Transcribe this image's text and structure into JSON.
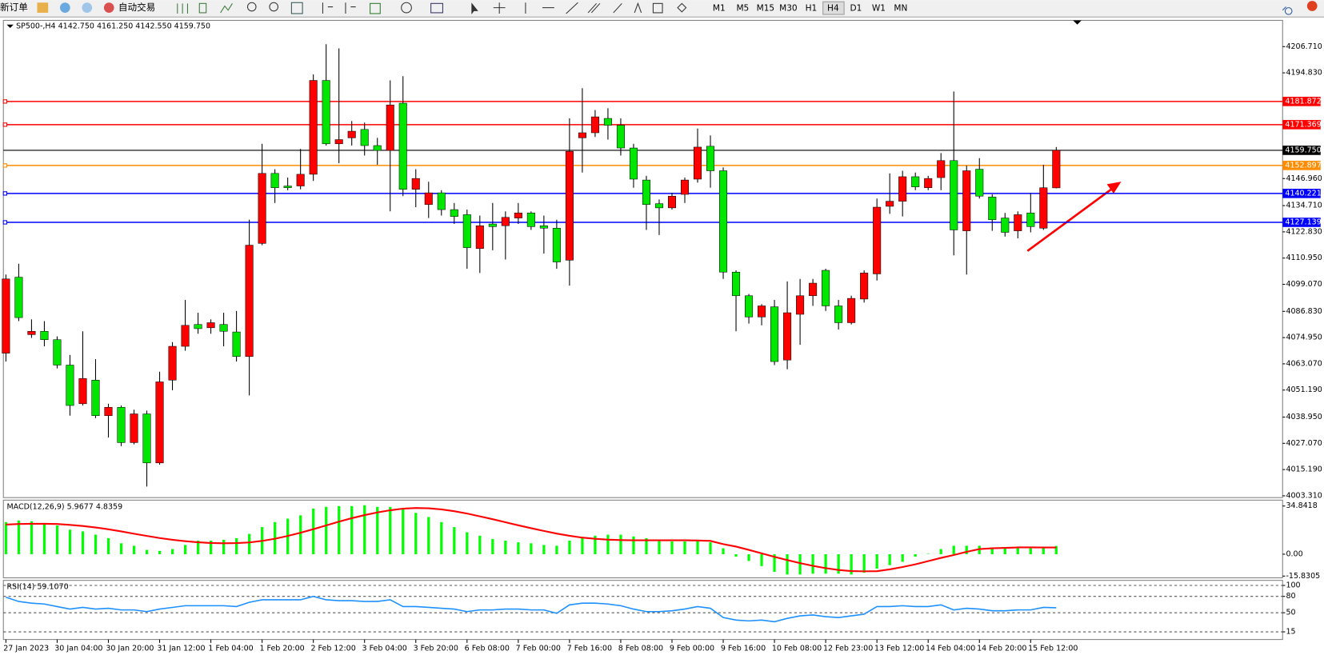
{
  "toolbar": {
    "new_order": "新订单",
    "auto_trading": "自动交易",
    "timeframes": [
      "M1",
      "M5",
      "M15",
      "M30",
      "H1",
      "H4",
      "D1",
      "W1",
      "MN"
    ]
  },
  "chart_data": [
    {
      "type": "candlestick",
      "title": "SP500-,H4  4142.750 4161.250 4142.550 4159.750",
      "up_color": "#ff0000",
      "down_color": "#00e600",
      "wick_color": "#000000",
      "categories": [
        "27 Jan 2023",
        null,
        null,
        null,
        "30 Jan 04:00",
        null,
        null,
        null,
        "30 Jan 20:00",
        null,
        null,
        null,
        "31 Jan 12:00",
        null,
        null,
        null,
        "1 Feb 04:00",
        null,
        null,
        null,
        "1 Feb 20:00",
        null,
        null,
        null,
        "2 Feb 12:00",
        null,
        null,
        null,
        "3 Feb 04:00",
        null,
        null,
        null,
        "3 Feb 20:00",
        null,
        null,
        null,
        "6 Feb 08:00",
        null,
        null,
        null,
        "7 Feb 00:00",
        null,
        null,
        null,
        "7 Feb 16:00",
        null,
        null,
        null,
        "8 Feb 08:00",
        null,
        null,
        null,
        "9 Feb 00:00",
        null,
        null,
        null,
        "9 Feb 16:00",
        null,
        null,
        null,
        "10 Feb 08:00",
        null,
        null,
        null,
        "12 Feb 23:00",
        null,
        null,
        null,
        "13 Feb 12:00",
        null,
        null,
        null,
        "14 Feb 04:00",
        null,
        null,
        null,
        "14 Feb 20:00",
        null,
        null,
        null,
        "15 Feb 12:00",
        null,
        null
      ],
      "open": [
        4067.9,
        4102.3,
        4076.3,
        4077.8,
        4074.0,
        4062.5,
        4045.0,
        4055.7,
        4039.6,
        4043.4,
        4027.4,
        4040.4,
        4018.2,
        4055.7,
        4071.0,
        4080.9,
        4079.4,
        4080.9,
        4077.5,
        4066.4,
        4117.6,
        4149.3,
        4143.6,
        4143.6,
        4148.9,
        4191.4,
        4162.7,
        4165.4,
        4169.2,
        4161.9,
        4159.7,
        4181.1,
        4142.1,
        4135.2,
        4140.5,
        4132.9,
        4130.6,
        4115.3,
        4126.4,
        4125.6,
        4129.1,
        4131.4,
        4125.6,
        4124.5,
        4110.0,
        4165.4,
        4167.7,
        4174.2,
        4171.1,
        4160.8,
        4146.3,
        4135.6,
        4133.7,
        4139.8,
        4146.7,
        4161.6,
        4150.5,
        4104.6,
        4093.9,
        4084.3,
        4088.9,
        4064.8,
        4085.5,
        4093.9,
        4105.4,
        4089.3,
        4081.7,
        4092.4,
        4103.8,
        4134.4,
        4136.7,
        4147.8,
        4142.8,
        4147.4,
        4155.1,
        4123.3,
        4151.2,
        4138.6,
        4129.1,
        4123.3,
        4131.4,
        4124.5,
        4142.75
      ],
      "high": [
        4103.5,
        4108.4,
        4083.2,
        4082.4,
        4075.5,
        4067.1,
        4077.8,
        4065.2,
        4045.0,
        4044.2,
        4042.3,
        4041.9,
        4059.5,
        4072.9,
        4092.0,
        4086.2,
        4083.2,
        4086.2,
        4087.0,
        4128.3,
        4162.7,
        4151.2,
        4147.4,
        4160.4,
        4194.1,
        4207.8,
        4205.9,
        4173.0,
        4172.3,
        4165.4,
        4191.4,
        4193.3,
        4151.2,
        4145.5,
        4141.7,
        4135.9,
        4132.9,
        4130.2,
        4135.9,
        4132.1,
        4135.9,
        4132.1,
        4130.2,
        4128.3,
        4174.2,
        4187.9,
        4178.0,
        4178.8,
        4174.2,
        4162.7,
        4148.2,
        4137.5,
        4140.5,
        4147.4,
        4169.6,
        4166.5,
        4152.0,
        4105.4,
        4094.7,
        4090.1,
        4092.0,
        4100.4,
        4101.5,
        4101.5,
        4106.1,
        4092.0,
        4093.9,
        4105.4,
        4137.9,
        4149.3,
        4150.5,
        4149.7,
        4148.2,
        4158.5,
        4186.4,
        4152.8,
        4156.2,
        4139.8,
        4131.4,
        4132.1,
        4140.5,
        4153.2,
        4161.25
      ],
      "low": [
        4064.1,
        4082.4,
        4074.8,
        4071.0,
        4061.0,
        4039.6,
        4044.2,
        4038.5,
        4029.7,
        4025.8,
        4026.6,
        4007.5,
        4017.4,
        4051.1,
        4069.0,
        4076.7,
        4076.7,
        4071.0,
        4064.1,
        4048.8,
        4116.8,
        4135.9,
        4141.7,
        4142.1,
        4145.9,
        4161.9,
        4153.9,
        4161.9,
        4157.4,
        4153.2,
        4132.1,
        4139.0,
        4134.0,
        4129.1,
        4130.2,
        4126.4,
        4106.1,
        4104.2,
        4114.5,
        4110.3,
        4126.4,
        4123.7,
        4113.0,
        4106.1,
        4098.5,
        4149.7,
        4165.8,
        4164.6,
        4157.4,
        4142.8,
        4123.7,
        4121.4,
        4132.9,
        4135.9,
        4145.1,
        4142.8,
        4101.5,
        4077.8,
        4081.3,
        4080.5,
        4062.5,
        4060.6,
        4071.7,
        4089.3,
        4087.0,
        4078.6,
        4080.9,
        4090.8,
        4100.8,
        4131.0,
        4129.8,
        4141.7,
        4141.7,
        4141.7,
        4112.2,
        4103.5,
        4137.9,
        4123.3,
        4120.7,
        4119.9,
        4122.6,
        4123.7,
        4142.55
      ],
      "close": [
        4101.5,
        4084.0,
        4077.8,
        4074.0,
        4062.5,
        4044.2,
        4056.4,
        4039.6,
        4043.4,
        4027.4,
        4040.4,
        4018.2,
        4054.9,
        4071.0,
        4080.5,
        4079.0,
        4081.7,
        4077.8,
        4066.4,
        4116.8,
        4149.3,
        4142.8,
        4142.8,
        4148.9,
        4191.4,
        4162.7,
        4164.6,
        4168.4,
        4161.9,
        4159.7,
        4180.3,
        4142.1,
        4147.0,
        4140.5,
        4132.9,
        4129.8,
        4115.7,
        4125.6,
        4125.2,
        4129.4,
        4131.4,
        4125.2,
        4124.5,
        4109.2,
        4159.3,
        4167.7,
        4174.9,
        4171.1,
        4160.8,
        4146.7,
        4135.2,
        4133.7,
        4139.0,
        4146.3,
        4161.2,
        4150.5,
        4104.6,
        4093.9,
        4084.3,
        4089.3,
        4064.1,
        4086.2,
        4093.9,
        4099.6,
        4089.3,
        4081.7,
        4092.7,
        4104.2,
        4134.0,
        4136.7,
        4147.8,
        4143.2,
        4147.0,
        4155.1,
        4123.7,
        4150.5,
        4139.0,
        4128.3,
        4122.6,
        4130.6,
        4125.2,
        4142.8,
        4159.75
      ],
      "ylim": [
        4002.5,
        4218.6
      ],
      "yticks": [
        {
          "value": 4206.71,
          "label": "4206.710"
        },
        {
          "value": 4194.83,
          "label": "4194.830"
        },
        {
          "value": 4146.96,
          "label": "4146.960"
        },
        {
          "value": 4134.71,
          "label": "4134.710"
        },
        {
          "value": 4122.83,
          "label": "4122.830"
        },
        {
          "value": 4110.95,
          "label": "4110.950"
        },
        {
          "value": 4099.07,
          "label": "4099.070"
        },
        {
          "value": 4086.83,
          "label": "4086.830"
        },
        {
          "value": 4074.95,
          "label": "4074.950"
        },
        {
          "value": 4063.07,
          "label": "4063.070"
        },
        {
          "value": 4051.19,
          "label": "4051.190"
        },
        {
          "value": 4038.95,
          "label": "4038.950"
        },
        {
          "value": 4027.07,
          "label": "4027.070"
        },
        {
          "value": 4015.19,
          "label": "4015.190"
        },
        {
          "value": 4003.31,
          "label": "4003.310"
        }
      ],
      "hlines": [
        {
          "value": 4181.872,
          "label": "4181.872",
          "color": "#ff0000"
        },
        {
          "value": 4171.369,
          "label": "4171.369",
          "color": "#ff0000"
        },
        {
          "value": 4159.75,
          "label": "4159.750",
          "color": "#000000"
        },
        {
          "value": 4152.897,
          "label": "4152.897",
          "color": "#ff8c00"
        },
        {
          "value": 4140.221,
          "label": "4140.221",
          "color": "#0000ff"
        },
        {
          "value": 4127.139,
          "label": "4127.139",
          "color": "#0000ff"
        }
      ]
    },
    {
      "type": "combo",
      "title": "MACD(12,26,9) 5.9677 4.8359",
      "ylim": [
        -17.1,
        39.1
      ],
      "yticks": [
        34.8418,
        {
          "value": 0,
          "label": "0.00"
        },
        -15.8305
      ],
      "series": [
        {
          "kind": "bar",
          "color": "#00ff00",
          "values": [
            23.2,
            24.4,
            23.8,
            22.6,
            20.8,
            17.7,
            16.5,
            14.1,
            11.6,
            7.9,
            6.1,
            3.1,
            2.4,
            3.7,
            6.7,
            9.8,
            9.8,
            10.4,
            11.6,
            14.7,
            19.6,
            23.2,
            25.7,
            28.1,
            33.0,
            34.2,
            34.8,
            34.8,
            35.4,
            34.2,
            34.2,
            33.0,
            29.9,
            26.9,
            23.2,
            19.6,
            15.9,
            13.4,
            11.0,
            9.8,
            8.6,
            7.9,
            6.7,
            6.1,
            9.8,
            12.2,
            13.4,
            14.1,
            14.1,
            12.8,
            11.6,
            9.8,
            9.2,
            9.2,
            9.8,
            8.6,
            4.3,
            -1.8,
            -4.9,
            -8.6,
            -12.8,
            -14.7,
            -14.7,
            -14.1,
            -14.1,
            -14.1,
            -14.7,
            -13.4,
            -10.4,
            -7.9,
            -5.5,
            -1.8,
            0.3,
            3.7,
            6.1,
            6.1,
            6.1,
            4.9,
            4.9,
            4.3,
            4.3,
            4.9,
            5.9677
          ]
        },
        {
          "kind": "line",
          "color": "#ff0000",
          "values": [
            21.4,
            21.8,
            22.0,
            22.0,
            21.8,
            21.2,
            20.4,
            19.3,
            18.0,
            16.5,
            14.8,
            13.2,
            11.7,
            10.4,
            9.4,
            8.6,
            8.1,
            7.9,
            8.0,
            8.5,
            9.6,
            11.2,
            13.2,
            15.5,
            18.1,
            20.8,
            23.5,
            26.0,
            28.3,
            30.2,
            31.8,
            32.9,
            33.4,
            33.2,
            32.4,
            31.1,
            29.4,
            27.4,
            25.3,
            23.1,
            20.9,
            18.8,
            16.8,
            14.9,
            13.3,
            12.0,
            11.1,
            10.5,
            10.2,
            10.1,
            10.1,
            10.1,
            10.1,
            10.0,
            9.9,
            9.6,
            7.3,
            5.5,
            3.1,
            0.6,
            -1.9,
            -4.3,
            -6.5,
            -8.4,
            -10.1,
            -11.4,
            -12.2,
            -12.4,
            -12.3,
            -11.0,
            -9.3,
            -7.3,
            -5.0,
            -2.7,
            -0.6,
            1.7,
            3.7,
            4.3,
            4.6,
            4.9,
            4.9,
            4.8,
            4.8359
          ]
        }
      ]
    },
    {
      "type": "line",
      "title": "RSI(14) 59.1070",
      "ylim": [
        1,
        109.3
      ],
      "yticks": [
        100,
        80,
        50,
        15
      ],
      "series": [
        {
          "color": "#1e90ff",
          "values": [
            78.4,
            70.6,
            67.5,
            66.0,
            61.4,
            56.7,
            59.8,
            56.7,
            58.3,
            55.2,
            55.2,
            52.1,
            56.7,
            59.8,
            62.9,
            62.9,
            62.9,
            62.9,
            61.4,
            69.1,
            73.7,
            73.7,
            73.7,
            73.7,
            79.9,
            73.7,
            72.2,
            72.2,
            70.6,
            70.6,
            73.7,
            61.4,
            61.4,
            59.8,
            58.3,
            56.7,
            52.1,
            55.2,
            55.2,
            56.7,
            56.7,
            55.2,
            55.2,
            49.0,
            64.4,
            67.5,
            67.5,
            66.0,
            62.9,
            56.7,
            52.1,
            52.1,
            53.6,
            56.7,
            61.4,
            58.3,
            41.3,
            36.6,
            35.1,
            36.6,
            33.5,
            39.7,
            44.3,
            45.9,
            42.8,
            41.3,
            44.3,
            47.4,
            61.4,
            61.4,
            62.9,
            61.4,
            61.4,
            64.4,
            55.2,
            58.3,
            56.7,
            53.6,
            53.6,
            55.2,
            55.2,
            59.8,
            59.107
          ]
        }
      ]
    }
  ]
}
